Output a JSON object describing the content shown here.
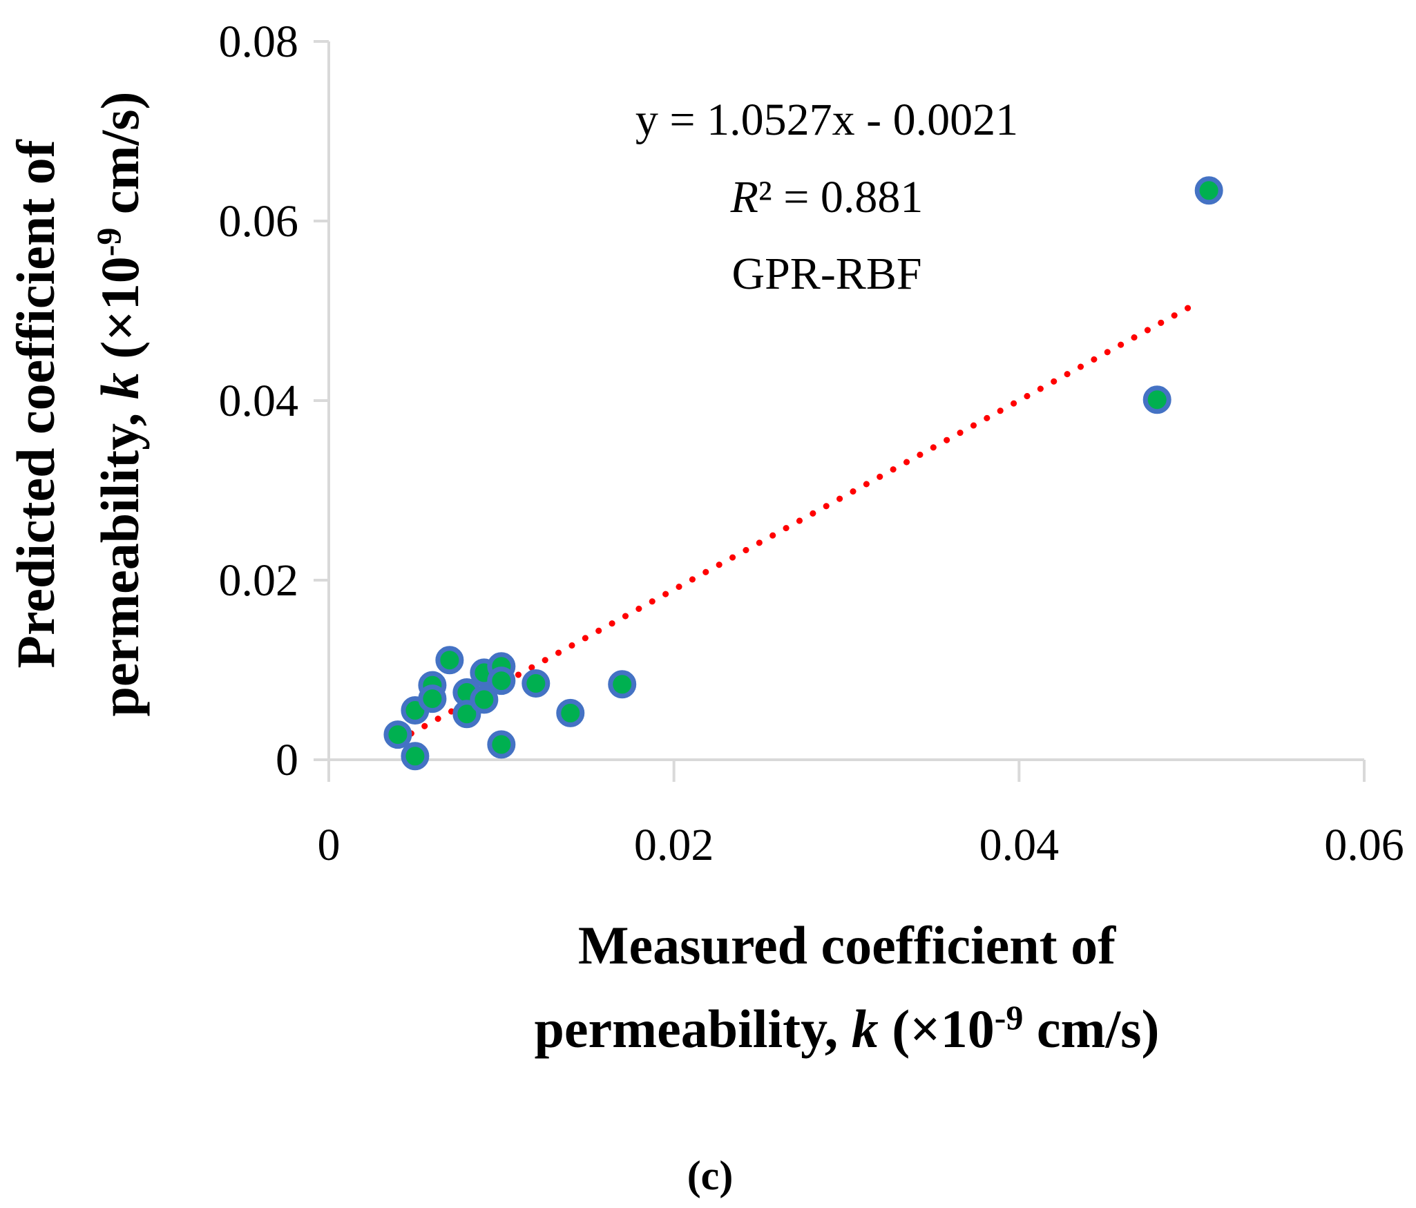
{
  "chart_data": {
    "type": "scatter",
    "title": "",
    "xlabel_line1": "Measured coefficient of",
    "xlabel_line2_pre": "permeability, ",
    "xlabel_line2_var": "k",
    "xlabel_line2_post": " (×10",
    "xlabel_line2_exp": "-9",
    "xlabel_line2_unit": " cm/s)",
    "ylabel_line1": "Predicted coefficient of",
    "ylabel_line2_pre": "permeability, ",
    "ylabel_line2_var": "k",
    "ylabel_line2_post": " (×10",
    "ylabel_line2_exp": "-9",
    "ylabel_line2_unit": " cm/s)",
    "xlim": [
      0,
      0.06
    ],
    "ylim": [
      0,
      0.08
    ],
    "xticks": [
      0,
      0.02,
      0.04,
      0.06
    ],
    "xtick_labels": [
      "0",
      "0.02",
      "0.04",
      "0.06"
    ],
    "yticks": [
      0,
      0.02,
      0.04,
      0.06,
      0.08
    ],
    "ytick_labels": [
      "0",
      "0.02",
      "0.04",
      "0.06",
      "0.08"
    ],
    "grid": false,
    "series": [
      {
        "name": "GPR-RBF",
        "marker_fill": "#00b050",
        "marker_edge": "#4472c4",
        "x": [
          0.004,
          0.005,
          0.005,
          0.006,
          0.006,
          0.007,
          0.008,
          0.008,
          0.009,
          0.009,
          0.01,
          0.01,
          0.01,
          0.012,
          0.014,
          0.017,
          0.048,
          0.051
        ],
        "y": [
          0.0028,
          0.0055,
          0.0004,
          0.0083,
          0.0068,
          0.0111,
          0.0075,
          0.0051,
          0.0097,
          0.0067,
          0.0104,
          0.0088,
          0.0017,
          0.0085,
          0.0052,
          0.0084,
          0.0401,
          0.0634
        ]
      }
    ],
    "trendline": {
      "type": "linear",
      "slope": 1.0527,
      "intercept": -0.0021,
      "x_range": [
        0.004,
        0.0505
      ],
      "color": "#ff0000",
      "style": "dotted"
    },
    "annotations": {
      "equation": "y = 1.0527x - 0.0021",
      "r2_symbol": "R",
      "r2_rest": "² = 0.881",
      "model": "GPR-RBF"
    }
  },
  "caption": {
    "open": "(",
    "letter": "c",
    "close": ")"
  }
}
